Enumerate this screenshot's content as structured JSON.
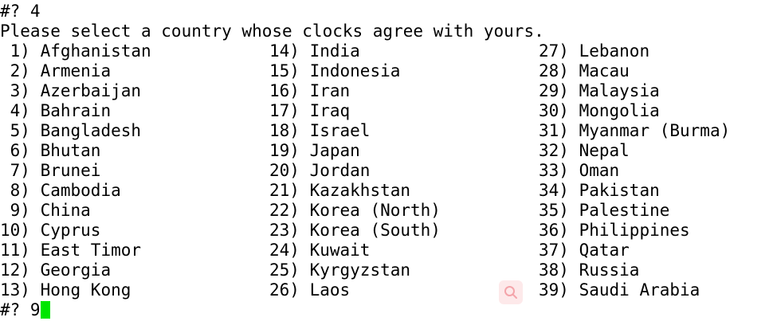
{
  "terminal": {
    "prompt_previous": "#? 4",
    "instruction": "Please select a country whose clocks agree with yours.",
    "options": [
      {
        "num": " 1)",
        "name": "Afghanistan"
      },
      {
        "num": " 2)",
        "name": "Armenia"
      },
      {
        "num": " 3)",
        "name": "Azerbaijan"
      },
      {
        "num": " 4)",
        "name": "Bahrain"
      },
      {
        "num": " 5)",
        "name": "Bangladesh"
      },
      {
        "num": " 6)",
        "name": "Bhutan"
      },
      {
        "num": " 7)",
        "name": "Brunei"
      },
      {
        "num": " 8)",
        "name": "Cambodia"
      },
      {
        "num": " 9)",
        "name": "China"
      },
      {
        "num": "10)",
        "name": "Cyprus"
      },
      {
        "num": "11)",
        "name": "East Timor"
      },
      {
        "num": "12)",
        "name": "Georgia"
      },
      {
        "num": "13)",
        "name": "Hong Kong"
      },
      {
        "num": "14)",
        "name": "India"
      },
      {
        "num": "15)",
        "name": "Indonesia"
      },
      {
        "num": "16)",
        "name": "Iran"
      },
      {
        "num": "17)",
        "name": "Iraq"
      },
      {
        "num": "18)",
        "name": "Israel"
      },
      {
        "num": "19)",
        "name": "Japan"
      },
      {
        "num": "20)",
        "name": "Jordan"
      },
      {
        "num": "21)",
        "name": "Kazakhstan"
      },
      {
        "num": "22)",
        "name": "Korea (North)"
      },
      {
        "num": "23)",
        "name": "Korea (South)"
      },
      {
        "num": "24)",
        "name": "Kuwait"
      },
      {
        "num": "25)",
        "name": "Kyrgyzstan"
      },
      {
        "num": "26)",
        "name": "Laos"
      },
      {
        "num": "27)",
        "name": "Lebanon"
      },
      {
        "num": "28)",
        "name": "Macau"
      },
      {
        "num": "29)",
        "name": "Malaysia"
      },
      {
        "num": "30)",
        "name": "Mongolia"
      },
      {
        "num": "31)",
        "name": "Myanmar (Burma)"
      },
      {
        "num": "32)",
        "name": "Nepal"
      },
      {
        "num": "33)",
        "name": "Oman"
      },
      {
        "num": "34)",
        "name": "Pakistan"
      },
      {
        "num": "35)",
        "name": "Palestine"
      },
      {
        "num": "36)",
        "name": "Philippines"
      },
      {
        "num": "37)",
        "name": "Qatar"
      },
      {
        "num": "38)",
        "name": "Russia"
      },
      {
        "num": "39)",
        "name": "Saudi Arabia"
      }
    ],
    "prompt_current": "#? 9",
    "cursor_color": "#00e600",
    "watermark_icon": "search-icon",
    "watermark_color": "#f4a4aa"
  }
}
